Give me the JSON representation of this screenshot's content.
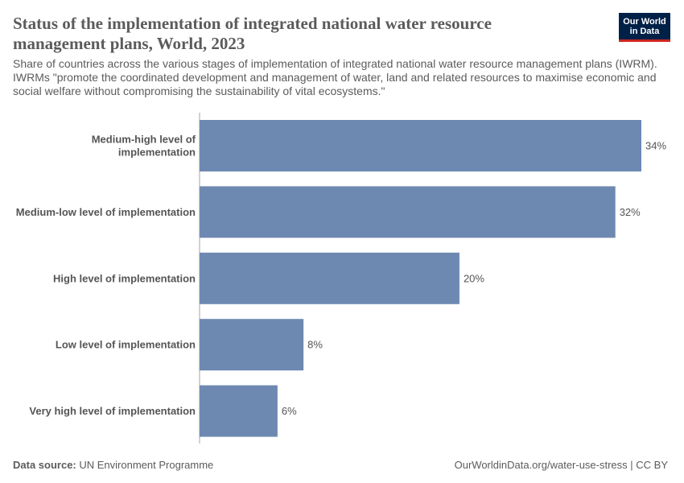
{
  "title": "Status of the implementation of integrated national water resource management plans, World, 2023",
  "subtitle": "Share of countries across the various stages of implementation of integrated national water resource management plans (IWRM). IWRMs \"promote the coordinated development and management of water, land and related resources to maximise economic and social welfare without compromising the sustainability of vital ecosystems.\"",
  "logo": {
    "line1": "Our World",
    "line2": "in Data"
  },
  "footer": {
    "source_label": "Data source:",
    "source_value": "UN Environment Programme",
    "url_license": "OurWorldinData.org/water-use-stress | CC BY"
  },
  "colors": {
    "bar": "#6d89b2",
    "axis": "#a6a6a6",
    "label": "#555555"
  },
  "chart_data": {
    "type": "bar",
    "orientation": "horizontal",
    "categories": [
      "Medium-high level of implementation",
      "Medium-low level of implementation",
      "High level of implementation",
      "Low level of implementation",
      "Very high level of implementation"
    ],
    "category_label_lines": [
      [
        "Medium-high level of",
        "implementation"
      ],
      [
        "Medium-low level of implementation"
      ],
      [
        "High level of implementation"
      ],
      [
        "Low level of implementation"
      ],
      [
        "Very high level of implementation"
      ]
    ],
    "values": [
      34,
      32,
      20,
      8,
      6
    ],
    "value_labels": [
      "34%",
      "32%",
      "20%",
      "8%",
      "6%"
    ],
    "unit": "%",
    "xlim": [
      0,
      34
    ],
    "title": "",
    "xlabel": "",
    "ylabel": ""
  }
}
